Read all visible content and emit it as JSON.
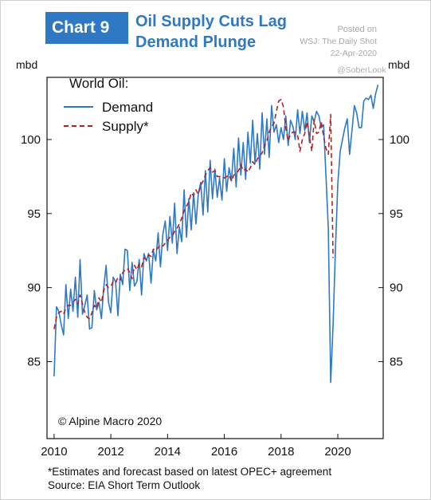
{
  "header": {
    "badge": "Chart 9",
    "title_line1": "Oil Supply Cuts Lag",
    "title_line2": "Demand Plunge",
    "posted_line1": "Posted on",
    "posted_line2": "WSJ: The Daily Shot",
    "posted_line3": "22-Apr-2020",
    "handle": "@SoberLook"
  },
  "footer": {
    "note": "*Estimates and forecast based on latest OPEC+ agreement",
    "source": "Source: EIA Short Term Outlook"
  },
  "chart_data": {
    "type": "line",
    "ylabel_left": "mbd",
    "ylabel_right": "mbd",
    "legend_title": "World Oil:",
    "copyright": "© Alpine Macro 2020",
    "xlim": [
      2009.75,
      2021.6
    ],
    "ylim": [
      79.8,
      104.2
    ],
    "x_ticks": [
      2010,
      2012,
      2014,
      2016,
      2018,
      2020
    ],
    "y_ticks": [
      85,
      90,
      95,
      100
    ],
    "grid": false,
    "legend_position": "top-left",
    "colors": {
      "demand": "#2f78c4",
      "supply": "#b22222"
    },
    "series": [
      {
        "name": "Demand",
        "style": "solid",
        "x_start": 2010.0,
        "x_step": 0.08333,
        "values": [
          84.0,
          88.7,
          88.4,
          87.5,
          86.8,
          90.2,
          87.9,
          89.9,
          88.4,
          90.7,
          88.0,
          91.9,
          88.2,
          88.8,
          89.5,
          87.2,
          87.3,
          89.8,
          88.5,
          89.0,
          87.9,
          90.0,
          91.5,
          89.0,
          88.3,
          90.7,
          90.4,
          88.1,
          90.9,
          90.2,
          92.6,
          92.5,
          89.8,
          91.7,
          90.1,
          90.4,
          91.9,
          89.5,
          92.3,
          91.8,
          92.3,
          90.3,
          92.5,
          91.8,
          93.7,
          91.4,
          93.6,
          94.5,
          92.5,
          94.8,
          93.0,
          95.7,
          92.3,
          94.1,
          93.1,
          96.6,
          93.4,
          96.0,
          93.9,
          96.4,
          94.3,
          96.3,
          97.1,
          94.9,
          97.9,
          95.1,
          98.6,
          96.0,
          98.0,
          96.1,
          97.4,
          95.9,
          98.7,
          96.5,
          98.1,
          97.2,
          99.4,
          96.8,
          100.1,
          97.6,
          99.8,
          97.3,
          100.5,
          98.4,
          101.3,
          98.4,
          100.4,
          98.0,
          101.8,
          99.0,
          101.4,
          98.8,
          102.3,
          100.5,
          101.0,
          99.8,
          100.8,
          100.0,
          101.6,
          99.6,
          101.3,
          100.9,
          100.0,
          102.0,
          100.4,
          101.9,
          100.6,
          101.8,
          99.8,
          101.6,
          101.2,
          101.9,
          101.6,
          100.8,
          101.0,
          97.5,
          94.0,
          83.6,
          87.5,
          92.5,
          97.0,
          99.2,
          100.0,
          100.8,
          101.4,
          99.0,
          100.6,
          102.3,
          101.8,
          100.8,
          100.8,
          102.6,
          102.8,
          102.7,
          103.0,
          102.1,
          103.1,
          103.7
        ]
      },
      {
        "name": "Supply*",
        "style": "dashed",
        "x_start": 2010.0,
        "x_step": 0.08333,
        "values": [
          87.2,
          88.0,
          88.3,
          88.4,
          88.2,
          88.6,
          88.8,
          88.8,
          89.0,
          89.2,
          88.9,
          89.5,
          88.9,
          88.3,
          88.0,
          87.9,
          88.3,
          88.8,
          88.6,
          89.3,
          89.0,
          89.8,
          90.2,
          90.0,
          90.1,
          90.4,
          90.3,
          90.7,
          90.5,
          91.0,
          91.2,
          91.3,
          91.0,
          90.6,
          91.5,
          91.2,
          91.6,
          91.4,
          92.0,
          91.9,
          92.2,
          92.1,
          92.6,
          92.5,
          92.7,
          92.9,
          92.8,
          93.0,
          93.2,
          93.4,
          93.5,
          93.8,
          94.0,
          94.3,
          94.7,
          95.2,
          95.5,
          95.8,
          96.4,
          96.2,
          96.6,
          96.3,
          96.9,
          97.2,
          97.6,
          97.9,
          98.1,
          97.8,
          97.9,
          97.5,
          97.5,
          97.5,
          97.4,
          97.5,
          97.6,
          97.2,
          97.6,
          97.7,
          97.9,
          98.3,
          97.9,
          98.0,
          97.8,
          98.1,
          98.5,
          98.3,
          98.7,
          98.9,
          99.1,
          99.6,
          99.9,
          100.5,
          100.9,
          101.1,
          101.9,
          102.6,
          102.7,
          102.2,
          100.8,
          99.9,
          100.4,
          100.5,
          100.5,
          100.3,
          99.2,
          100.0,
          100.4,
          101.2,
          100.2,
          99.2,
          101.3,
          100.4,
          100.5,
          101.2,
          100.2,
          99.4,
          99.0,
          101.7,
          92.0
        ]
      }
    ]
  }
}
